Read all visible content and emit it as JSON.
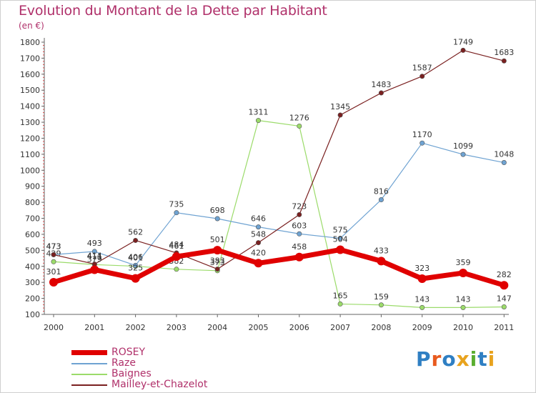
{
  "title": "Evolution du Montant de la Dette par Habitant",
  "unit": "(en €)",
  "logo": {
    "text": "Proxiti",
    "colors": [
      "#2f7fc3",
      "#e85a1e",
      "#2f7fc3",
      "#e8a31e",
      "#5aae2f",
      "#2f7fc3",
      "#e8a31e"
    ]
  },
  "chart_data": {
    "type": "line",
    "x": [
      "2000",
      "2001",
      "2002",
      "2003",
      "2004",
      "2005",
      "2006",
      "2007",
      "2008",
      "2009",
      "2010",
      "2011"
    ],
    "ylim": [
      100,
      1800
    ],
    "yticks": [
      100,
      200,
      300,
      400,
      500,
      600,
      700,
      800,
      900,
      1000,
      1100,
      1200,
      1300,
      1400,
      1500,
      1600,
      1700,
      1800
    ],
    "grid": false,
    "legend_position": "bottom-left",
    "series": [
      {
        "name": "ROSEY",
        "color": "#e00000",
        "values": [
          301,
          379,
          325,
          461,
          501,
          420,
          458,
          504,
          433,
          323,
          359,
          282
        ]
      },
      {
        "name": "Raze",
        "color": "#6fa3d2",
        "values": [
          473,
          493,
          406,
          735,
          698,
          646,
          603,
          575,
          816,
          1170,
          1099,
          1048
        ]
      },
      {
        "name": "Baignes",
        "color": "#9bdb6a",
        "values": [
          429,
          411,
          401,
          382,
          373,
          1311,
          1276,
          165,
          159,
          143,
          143,
          147
        ]
      },
      {
        "name": "Mailley-et-Chazelot",
        "color": "#7a2020",
        "values": [
          473,
          414,
          562,
          484,
          383,
          548,
          723,
          1345,
          1483,
          1587,
          1749,
          1683
        ]
      }
    ]
  }
}
